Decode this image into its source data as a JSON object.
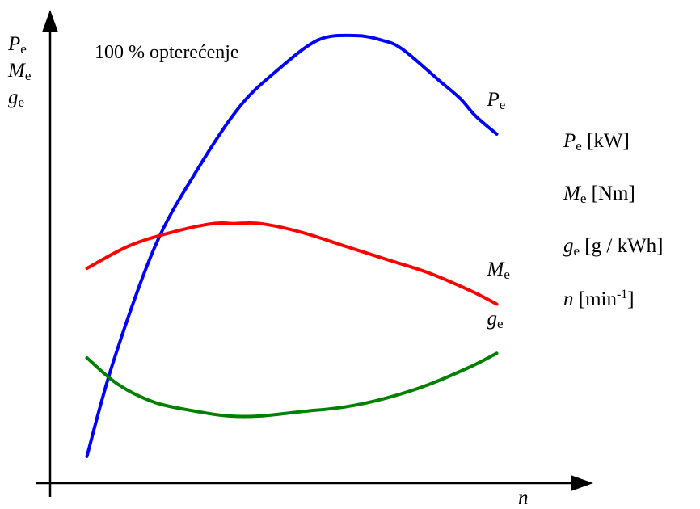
{
  "chart_data": {
    "type": "line",
    "title": "100 % opterećenje",
    "xlabel": "n",
    "ylabel_lines": [
      {
        "sym": "P",
        "sub": "e"
      },
      {
        "sym": "M",
        "sub": "e"
      },
      {
        "sym": "g",
        "sub": "e"
      }
    ],
    "units": [
      {
        "sym": "P",
        "sub": "e",
        "unit": " [kW]"
      },
      {
        "sym": "M",
        "sub": "e",
        "unit": " [Nm]"
      },
      {
        "sym": "g",
        "sub": "e",
        "unit": " [g / kWh]"
      },
      {
        "sym": "n",
        "sub": "",
        "unit": " [min",
        "sup": "-1",
        "close": "]"
      }
    ],
    "xlim": [
      0,
      100
    ],
    "ylim": [
      0,
      100
    ],
    "grid": false,
    "axis_ticks": false,
    "series": [
      {
        "name": "P",
        "name_sub": "e",
        "color": "#0000ff",
        "x": [
          7,
          12,
          20,
          28,
          36,
          43,
          51,
          58,
          63,
          67,
          74,
          78,
          81,
          85
        ],
        "y": [
          6,
          27,
          53,
          70,
          84,
          92,
          99,
          100,
          99,
          97,
          90,
          86,
          82,
          78
        ]
      },
      {
        "name": "M",
        "name_sub": "e",
        "color": "#ff0000",
        "x": [
          7,
          15,
          23,
          31,
          35,
          40,
          48,
          56,
          64,
          72,
          80,
          85
        ],
        "y": [
          48,
          53,
          56,
          58,
          58,
          58,
          56,
          53,
          50,
          47,
          43,
          40
        ]
      },
      {
        "name": "g",
        "name_sub": "e",
        "color": "#008000",
        "x": [
          7,
          13,
          20,
          28,
          34,
          40,
          48,
          56,
          64,
          72,
          80,
          85
        ],
        "y": [
          28,
          22,
          18,
          16,
          15,
          15,
          16,
          17,
          19,
          22,
          26,
          29
        ]
      }
    ]
  }
}
